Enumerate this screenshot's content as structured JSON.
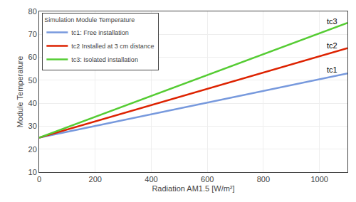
{
  "chart_data": {
    "type": "line",
    "title": "Simulation Module Temperature",
    "xlabel": "Radiation AM1.5 [W/m²]",
    "ylabel": "Module Temperature",
    "x": [
      0,
      1100
    ],
    "series": [
      {
        "name": "tc1: Free installation",
        "color": "#7799dd",
        "values": [
          25.0,
          53.0
        ]
      },
      {
        "name": "tc2 Installed at 3 cm distance",
        "color": "#dd2200",
        "values": [
          25.0,
          64.0
        ]
      },
      {
        "name": "tc3: Isolated installation",
        "color": "#55cc33",
        "values": [
          25.0,
          75.0
        ]
      }
    ],
    "annotations": [
      "tc1",
      "tc2",
      "tc3"
    ],
    "xlim": [
      0,
      1100
    ],
    "ylim": [
      10,
      80
    ],
    "xticks": [
      0,
      200,
      400,
      600,
      800,
      1000
    ],
    "yticks": [
      10,
      20,
      30,
      40,
      50,
      60,
      70,
      80
    ],
    "grid": true,
    "legend": "upper left"
  }
}
